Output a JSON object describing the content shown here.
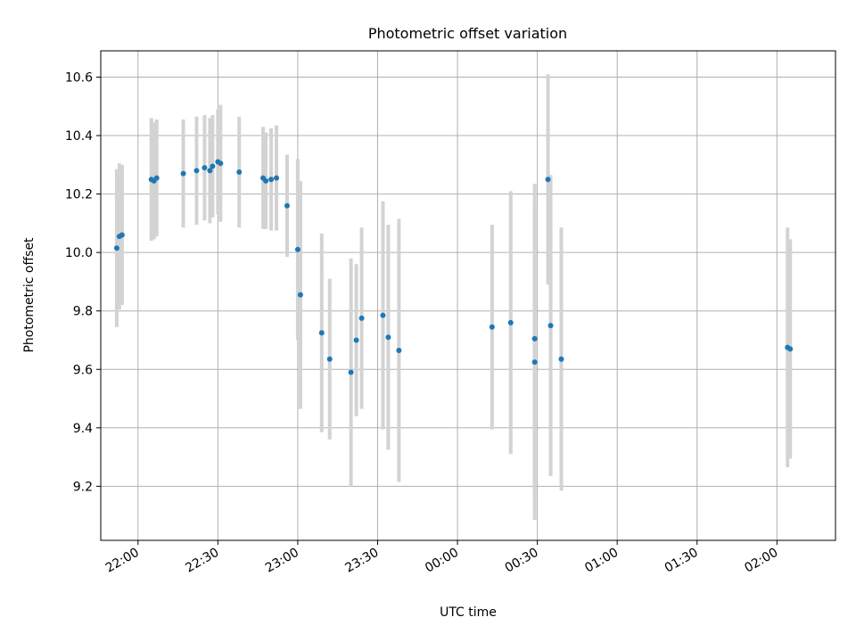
{
  "chart_data": {
    "type": "scatter",
    "title": "Photometric offset variation",
    "xlabel": "UTC time",
    "ylabel": "Photometric offset",
    "x_ticks": [
      "22:00",
      "22:30",
      "23:00",
      "23:30",
      "00:00",
      "00:30",
      "01:00",
      "01:30",
      "02:00"
    ],
    "y_ticks": [
      "9.2",
      "9.4",
      "9.6",
      "9.8",
      "10.0",
      "10.2",
      "10.4",
      "10.6"
    ],
    "x_range": [
      "21:46",
      "02:22"
    ],
    "ylim": [
      9.015,
      10.69
    ],
    "grid": true,
    "colors": {
      "marker": "#1f77b4",
      "errorbar": "#d3d3d3"
    },
    "points": [
      {
        "t": "21:52",
        "y": 10.015,
        "err": 0.27
      },
      {
        "t": "21:53",
        "y": 10.055,
        "err": 0.25
      },
      {
        "t": "21:54",
        "y": 10.06,
        "err": 0.24
      },
      {
        "t": "22:05",
        "y": 10.25,
        "err": 0.21
      },
      {
        "t": "22:06",
        "y": 10.245,
        "err": 0.2
      },
      {
        "t": "22:07",
        "y": 10.255,
        "err": 0.2
      },
      {
        "t": "22:17",
        "y": 10.27,
        "err": 0.185
      },
      {
        "t": "22:22",
        "y": 10.28,
        "err": 0.185
      },
      {
        "t": "22:25",
        "y": 10.29,
        "err": 0.18
      },
      {
        "t": "22:27",
        "y": 10.28,
        "err": 0.18
      },
      {
        "t": "22:28",
        "y": 10.295,
        "err": 0.175
      },
      {
        "t": "22:30",
        "y": 10.31,
        "err": 0.18
      },
      {
        "t": "22:31",
        "y": 10.305,
        "err": 0.2
      },
      {
        "t": "22:38",
        "y": 10.275,
        "err": 0.19
      },
      {
        "t": "22:47",
        "y": 10.255,
        "err": 0.175
      },
      {
        "t": "22:48",
        "y": 10.245,
        "err": 0.165
      },
      {
        "t": "22:50",
        "y": 10.25,
        "err": 0.175
      },
      {
        "t": "22:52",
        "y": 10.255,
        "err": 0.18
      },
      {
        "t": "22:56",
        "y": 10.16,
        "err": 0.175
      },
      {
        "t": "23:00",
        "y": 10.01,
        "err": 0.31
      },
      {
        "t": "23:01",
        "y": 9.855,
        "err": 0.39
      },
      {
        "t": "23:09",
        "y": 9.725,
        "err": 0.34
      },
      {
        "t": "23:12",
        "y": 9.635,
        "err": 0.275
      },
      {
        "t": "23:20",
        "y": 9.59,
        "err": 0.39
      },
      {
        "t": "23:22",
        "y": 9.7,
        "err": 0.26
      },
      {
        "t": "23:24",
        "y": 9.775,
        "err": 0.31
      },
      {
        "t": "23:32",
        "y": 9.785,
        "err": 0.39
      },
      {
        "t": "23:34",
        "y": 9.71,
        "err": 0.385
      },
      {
        "t": "23:38",
        "y": 9.665,
        "err": 0.45
      },
      {
        "t": "00:13",
        "y": 9.745,
        "err": 0.35
      },
      {
        "t": "00:20",
        "y": 9.76,
        "err": 0.45
      },
      {
        "t": "00:29",
        "y": 9.625,
        "err": 0.54
      },
      {
        "t": "00:29",
        "y": 9.705,
        "err": 0.53
      },
      {
        "t": "00:34",
        "y": 10.25,
        "err": 0.36
      },
      {
        "t": "00:35",
        "y": 9.75,
        "err": 0.515
      },
      {
        "t": "00:39",
        "y": 9.635,
        "err": 0.45
      },
      {
        "t": "02:04",
        "y": 9.675,
        "err": 0.41
      },
      {
        "t": "02:05",
        "y": 9.67,
        "err": 0.375
      }
    ]
  }
}
